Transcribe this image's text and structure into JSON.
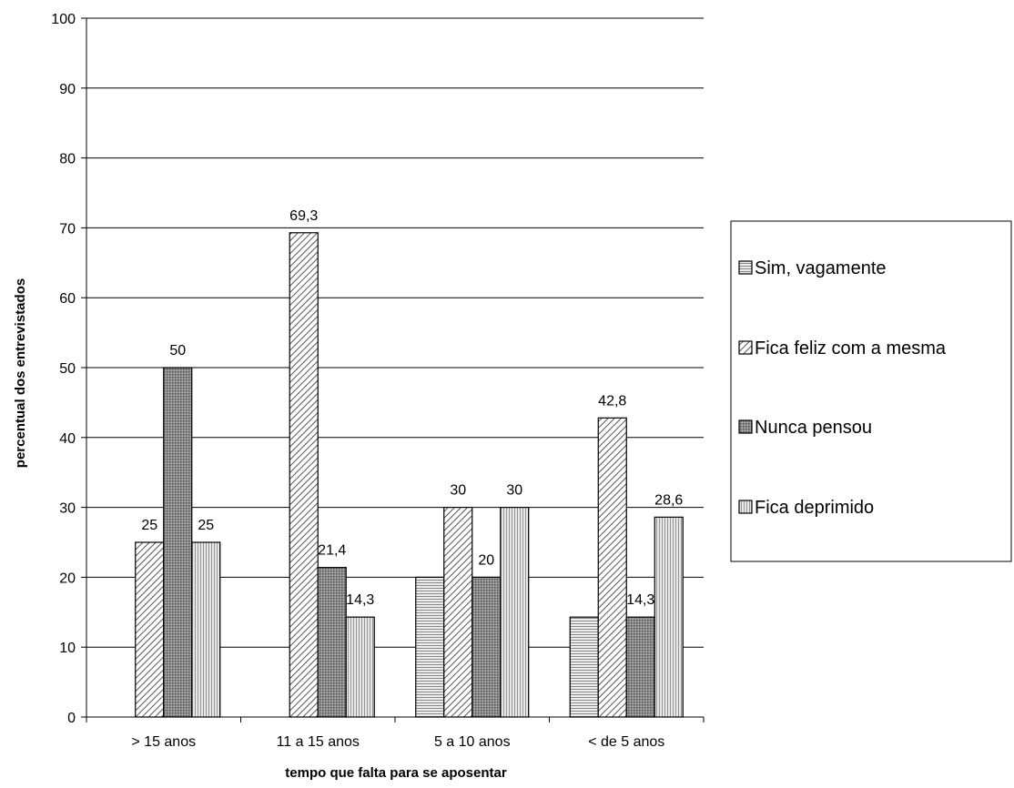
{
  "chart_data": {
    "type": "bar",
    "title": "",
    "xlabel": "tempo que falta para se aposentar",
    "ylabel": "percentual dos entrevistados",
    "ylim": [
      0,
      100
    ],
    "ytick_step": 10,
    "grid": true,
    "legend_position": "right",
    "categories": [
      "> 15 anos",
      "11 a 15 anos",
      "5 a 10 anos",
      "< de 5 anos"
    ],
    "series": [
      {
        "name": "Sim, vagamente",
        "pattern": "horizontal-lines",
        "values": [
          0,
          0,
          20,
          14.3
        ],
        "labels": [
          "",
          "",
          "",
          ""
        ]
      },
      {
        "name": "Fica feliz com a mesma",
        "pattern": "diagonal-hatch",
        "values": [
          25,
          69.3,
          30,
          42.8
        ],
        "labels": [
          "25",
          "69,3",
          "30",
          "42,8"
        ]
      },
      {
        "name": "Nunca pensou",
        "pattern": "dark-dots",
        "values": [
          50,
          21.4,
          20,
          14.3
        ],
        "labels": [
          "50",
          "21,4",
          "20",
          "14,3"
        ]
      },
      {
        "name": "Fica deprimido",
        "pattern": "vertical-lines",
        "values": [
          25,
          14.3,
          30,
          28.6
        ],
        "labels": [
          "25",
          "14,3",
          "30",
          "28,6"
        ]
      }
    ]
  }
}
